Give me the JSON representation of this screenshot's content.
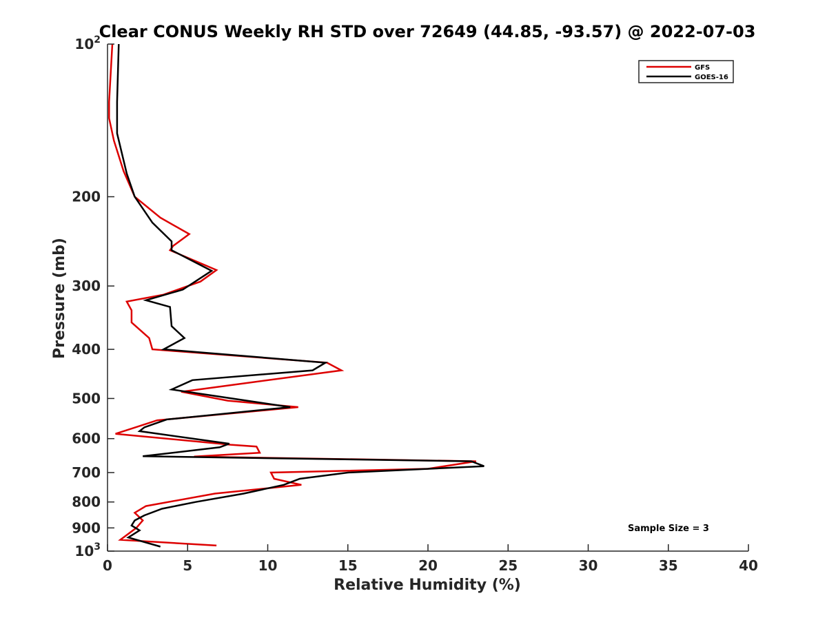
{
  "chart_data": {
    "type": "line",
    "title": "Clear CONUS Weekly RH STD over 72649 (44.85, -93.57) @ 2022-07-03",
    "xlabel": "Relative Humidity (%)",
    "ylabel": "Pressure (mb)",
    "xlim": [
      0,
      40
    ],
    "ylim": [
      100,
      1000
    ],
    "y_scale": "log",
    "y_reversed": true,
    "grid": false,
    "legend_position": "top-right",
    "x_ticks": [
      "0",
      "5",
      "10",
      "15",
      "20",
      "25",
      "30",
      "35",
      "40"
    ],
    "x_tick_values": [
      0,
      5,
      10,
      15,
      20,
      25,
      30,
      35,
      40
    ],
    "y_ticks": [
      {
        "value": 100,
        "base": "10",
        "exp": "2"
      },
      {
        "value": 200,
        "label": "200"
      },
      {
        "value": 300,
        "label": "300"
      },
      {
        "value": 400,
        "label": "400"
      },
      {
        "value": 500,
        "label": "500"
      },
      {
        "value": 600,
        "label": "600"
      },
      {
        "value": 700,
        "label": "700"
      },
      {
        "value": 800,
        "label": "800"
      },
      {
        "value": 900,
        "label": "900"
      },
      {
        "value": 1000,
        "base": "10",
        "exp": "3"
      }
    ],
    "annotation": "Sample Size = 3",
    "series": [
      {
        "name": "GFS",
        "color": "#dd0000",
        "points": [
          [
            0.3,
            100
          ],
          [
            0.1,
            130
          ],
          [
            0.1,
            140
          ],
          [
            0.4,
            155
          ],
          [
            1.0,
            178
          ],
          [
            1.7,
            200
          ],
          [
            3.3,
            220
          ],
          [
            5.1,
            237
          ],
          [
            4.1,
            250
          ],
          [
            3.9,
            255
          ],
          [
            6.8,
            279
          ],
          [
            5.8,
            294
          ],
          [
            3.5,
            312
          ],
          [
            1.2,
            322
          ],
          [
            1.5,
            335
          ],
          [
            1.5,
            354
          ],
          [
            2.6,
            380
          ],
          [
            2.8,
            400
          ],
          [
            13.7,
            425
          ],
          [
            14.6,
            440
          ],
          [
            7.8,
            470
          ],
          [
            4.6,
            485
          ],
          [
            7.5,
            505
          ],
          [
            11.9,
            520
          ],
          [
            3.1,
            552
          ],
          [
            1.6,
            572
          ],
          [
            0.5,
            587
          ],
          [
            7.7,
            617
          ],
          [
            9.3,
            622
          ],
          [
            9.5,
            640
          ],
          [
            5.4,
            651
          ],
          [
            23.0,
            665
          ],
          [
            20.0,
            688
          ],
          [
            10.2,
            700
          ],
          [
            10.4,
            720
          ],
          [
            12.1,
            740
          ],
          [
            6.7,
            770
          ],
          [
            2.4,
            815
          ],
          [
            1.7,
            840
          ],
          [
            2.2,
            870
          ],
          [
            1.8,
            900
          ],
          [
            0.8,
            950
          ],
          [
            6.8,
            975
          ]
        ]
      },
      {
        "name": "GOES-16",
        "color": "#000000",
        "points": [
          [
            0.7,
            100
          ],
          [
            0.6,
            130
          ],
          [
            0.6,
            150
          ],
          [
            1.2,
            180
          ],
          [
            1.7,
            200
          ],
          [
            2.8,
            225
          ],
          [
            4.0,
            245
          ],
          [
            4.0,
            255
          ],
          [
            6.5,
            280
          ],
          [
            4.7,
            305
          ],
          [
            2.4,
            320
          ],
          [
            3.9,
            330
          ],
          [
            4.0,
            360
          ],
          [
            4.8,
            380
          ],
          [
            3.5,
            400
          ],
          [
            13.6,
            425
          ],
          [
            12.8,
            440
          ],
          [
            5.3,
            460
          ],
          [
            4.0,
            480
          ],
          [
            11.4,
            520
          ],
          [
            3.7,
            550
          ],
          [
            2.3,
            570
          ],
          [
            2.0,
            580
          ],
          [
            7.6,
            614
          ],
          [
            7.0,
            624
          ],
          [
            2.2,
            650
          ],
          [
            22.7,
            665
          ],
          [
            23.5,
            680
          ],
          [
            15.0,
            700
          ],
          [
            12.0,
            720
          ],
          [
            11.0,
            740
          ],
          [
            8.5,
            770
          ],
          [
            5.5,
            800
          ],
          [
            3.4,
            825
          ],
          [
            2.3,
            850
          ],
          [
            1.7,
            870
          ],
          [
            1.5,
            890
          ],
          [
            2.0,
            910
          ],
          [
            1.3,
            940
          ],
          [
            3.3,
            980
          ]
        ]
      }
    ]
  }
}
